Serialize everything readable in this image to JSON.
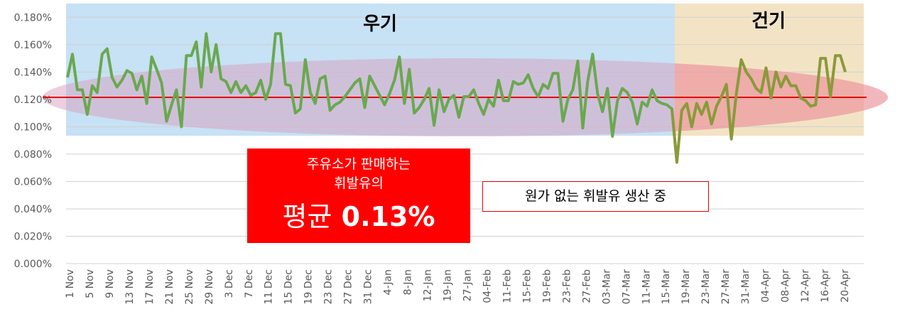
{
  "chart_data": {
    "type": "line",
    "ylim": [
      0,
      0.0019
    ],
    "yticks": [
      "0.000%",
      "0.020%",
      "0.040%",
      "0.060%",
      "0.080%",
      "0.100%",
      "0.120%",
      "0.140%",
      "0.160%",
      "0.180%"
    ],
    "xticks": [
      "1 Nov",
      "5 Nov",
      "9 Nov",
      "13 Nov",
      "17 Nov",
      "21 Nov",
      "25 Nov",
      "29 Nov",
      "3 Dec",
      "7 Dec",
      "11 Dec",
      "15 Dec",
      "19 Dec",
      "23 Dec",
      "27 Dec",
      "31 Dec",
      "4-Jan",
      "8-Jan",
      "12-Jan",
      "19-Jan",
      "27-Jan",
      "04-Feb",
      "11-Feb",
      "15-Feb",
      "19-Feb",
      "23-Feb",
      "27-Feb",
      "03-Mar",
      "07-Mar",
      "11-Mar",
      "15-Mar",
      "19-Mar",
      "23-Mar",
      "27-Mar",
      "31-Mar",
      "04-Apr",
      "08-Apr",
      "12-Apr",
      "16-Apr",
      "20-Apr"
    ],
    "values": [
      0.136,
      0.153,
      0.127,
      0.127,
      0.109,
      0.13,
      0.125,
      0.153,
      0.157,
      0.136,
      0.129,
      0.134,
      0.141,
      0.139,
      0.127,
      0.137,
      0.117,
      0.151,
      0.142,
      0.132,
      0.104,
      0.116,
      0.127,
      0.1,
      0.152,
      0.152,
      0.162,
      0.129,
      0.168,
      0.14,
      0.16,
      0.135,
      0.133,
      0.125,
      0.133,
      0.125,
      0.13,
      0.123,
      0.125,
      0.134,
      0.12,
      0.131,
      0.168,
      0.168,
      0.131,
      0.13,
      0.11,
      0.113,
      0.149,
      0.125,
      0.117,
      0.135,
      0.137,
      0.112,
      0.116,
      0.118,
      0.122,
      0.127,
      0.132,
      0.135,
      0.114,
      0.137,
      0.13,
      0.123,
      0.116,
      0.124,
      0.134,
      0.151,
      0.117,
      0.142,
      0.11,
      0.114,
      0.12,
      0.128,
      0.101,
      0.127,
      0.111,
      0.12,
      0.123,
      0.107,
      0.122,
      0.122,
      0.127,
      0.117,
      0.109,
      0.12,
      0.115,
      0.134,
      0.119,
      0.119,
      0.133,
      0.131,
      0.132,
      0.138,
      0.128,
      0.122,
      0.131,
      0.128,
      0.139,
      0.139,
      0.104,
      0.12,
      0.127,
      0.148,
      0.099,
      0.133,
      0.153,
      0.124,
      0.111,
      0.128,
      0.093,
      0.119,
      0.128,
      0.125,
      0.118,
      0.102,
      0.118,
      0.115,
      0.127,
      0.119,
      0.117,
      0.116,
      0.113,
      0.074,
      0.112,
      0.117,
      0.1,
      0.117,
      0.109,
      0.118,
      0.102,
      0.115,
      0.122,
      0.131,
      0.091,
      0.124,
      0.149,
      0.14,
      0.135,
      0.128,
      0.125,
      0.143,
      0.121,
      0.14,
      0.129,
      0.137,
      0.13,
      0.13,
      0.121,
      0.119,
      0.115,
      0.116,
      0.15,
      0.15,
      0.122,
      0.152,
      0.152,
      0.14
    ],
    "average": 0.13,
    "grid": true,
    "legend": "none"
  },
  "labels": {
    "rainy_season": "우기",
    "dry_season": "건기",
    "avg_line1": "주유소가 판매하는",
    "avg_line2": "휘발유의",
    "avg_line3_prefix": "평균",
    "avg_line3_value": "0.13%",
    "note": "원가 없는 휘발유 생산 중"
  },
  "colors": {
    "rainy_bg": "#c7e1f5",
    "dry_bg": "#f3e3c5",
    "avg_band": "#e6a0b0",
    "series_green": "#6aa84f",
    "series_dry": "#8a9a3a",
    "avg_line": "#e00000",
    "label_box": "#ff0000"
  }
}
